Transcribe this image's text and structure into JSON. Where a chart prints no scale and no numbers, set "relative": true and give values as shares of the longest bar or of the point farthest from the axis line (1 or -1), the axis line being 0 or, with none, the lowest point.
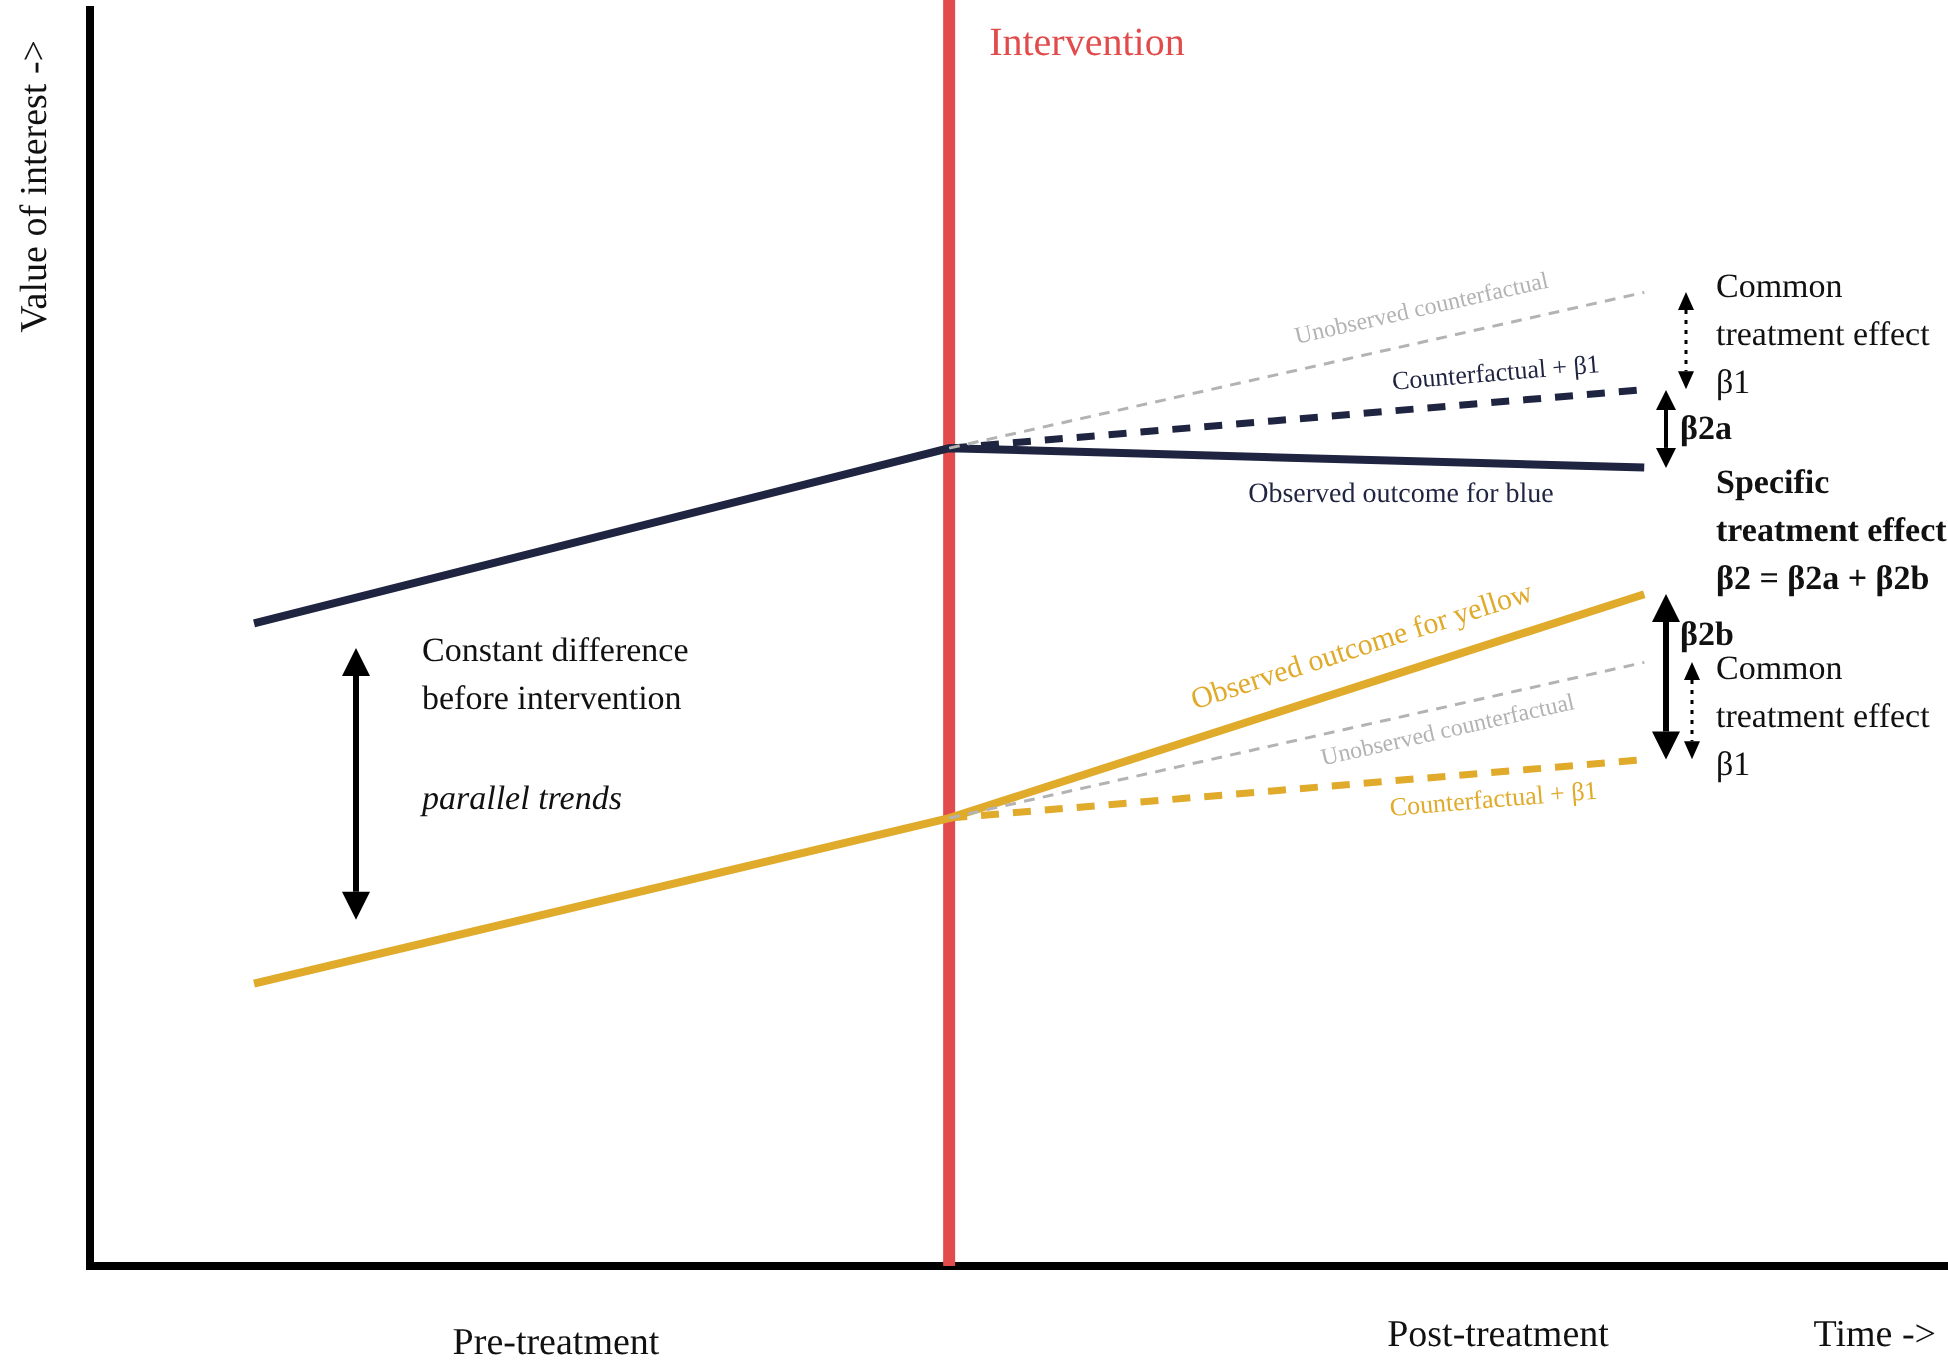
{
  "chart_data": {
    "type": "line",
    "relative": true,
    "categories": [
      null,
      null,
      null
    ],
    "xlabel": "Time ->",
    "ylabel": "Value of interest ->",
    "grid": false,
    "legend": false,
    "marker": "none",
    "series": [
      {
        "name": "Observed outcome for blue",
        "color": "#1f2440",
        "values": [
          0.66,
          0.84,
          0.82
        ],
        "line_style": "solid"
      },
      {
        "name": "Unobserved counterfactual",
        "color": "#b3b3b3",
        "values": [
          null,
          0.84,
          1
        ],
        "line_style": "dashed"
      },
      {
        "name": "Counterfactual + β1",
        "color": "#1f2440",
        "values": [
          null,
          0.84,
          0.9
        ],
        "line_style": "dashed"
      },
      {
        "name": "Observed outcome for yellow",
        "color": "#e0aa2a",
        "values": [
          0.29,
          0.46,
          0.69
        ],
        "line_style": "solid"
      },
      {
        "name": "Unobserved counterfactual",
        "color": "#b3b3b3",
        "values": [
          null,
          0.46,
          0.62
        ],
        "line_style": "dashed"
      },
      {
        "name": "Counterfactual + β1",
        "color": "#e0aa2a",
        "values": [
          null,
          0.46,
          0.52
        ],
        "line_style": "dashed"
      }
    ],
    "annotations": [
      "Constant difference before intervention",
      "parallel trends",
      "Common treatment effect β1",
      "β2a",
      "Specific treatment effect β2 = β2a + β2b",
      "β2b",
      "Common treatment effect β1",
      "Pre-treatment",
      "Post-treatment",
      "Intervention"
    ]
  }
}
